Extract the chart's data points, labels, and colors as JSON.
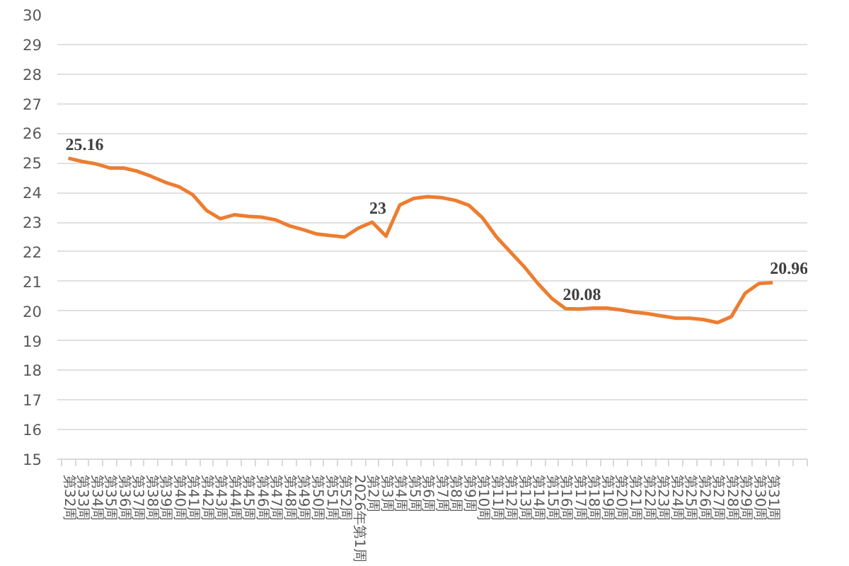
{
  "chart_data": {
    "type": "line",
    "categories": [
      "第32周",
      "第33周",
      "第34周",
      "第35周",
      "第36周",
      "第37周",
      "第38周",
      "第39周",
      "第40周",
      "第41周",
      "第42周",
      "第43周",
      "第44周",
      "第45周",
      "第46周",
      "第47周",
      "第48周",
      "第49周",
      "第50周",
      "第51周",
      "第52周",
      "2026年第1周",
      "第2周",
      "第3周",
      "第4周",
      "第5周",
      "第6周",
      "第7周",
      "第8周",
      "第9周",
      "第10周",
      "第11周",
      "第12周",
      "第13周",
      "第14周",
      "第15周",
      "第16周",
      "第17周",
      "第18周",
      "第19周",
      "第20周",
      "第21周",
      "第22周",
      "第23周",
      "第24周",
      "第25周",
      "第26周",
      "第27周",
      "第28周",
      "第29周",
      "第30周",
      "第31周",
      null,
      null
    ],
    "series": [
      {
        "color": "#ed7d31",
        "values": [
          25.16,
          25.05,
          24.97,
          24.83,
          24.83,
          24.72,
          24.55,
          24.35,
          24.2,
          23.93,
          23.4,
          23.12,
          23.25,
          23.2,
          23.17,
          23.08,
          22.88,
          22.75,
          22.6,
          22.55,
          22.5,
          22.8,
          23,
          22.53,
          23.58,
          23.8,
          23.86,
          23.83,
          23.74,
          23.57,
          23.14,
          22.5,
          22.0,
          21.5,
          20.93,
          20.43,
          20.08,
          20.07,
          20.1,
          20.1,
          20.04,
          19.96,
          19.91,
          19.83,
          19.76,
          19.76,
          19.71,
          19.61,
          19.81,
          20.6,
          20.93,
          20.96,
          null,
          null
        ],
        "value_labels": [
          "25.16",
          null,
          null,
          null,
          null,
          null,
          null,
          null,
          null,
          null,
          null,
          null,
          null,
          null,
          null,
          null,
          null,
          null,
          null,
          null,
          null,
          null,
          "23",
          null,
          null,
          null,
          null,
          null,
          null,
          null,
          null,
          null,
          null,
          null,
          null,
          null,
          "20.08",
          null,
          null,
          null,
          null,
          null,
          null,
          null,
          null,
          null,
          null,
          null,
          null,
          null,
          null,
          "20.96",
          null,
          null
        ]
      }
    ],
    "ylim": [
      15,
      30
    ],
    "yticks": [
      15,
      16,
      17,
      18,
      19,
      20,
      21,
      22,
      23,
      24,
      25,
      26,
      27,
      28,
      29,
      30
    ],
    "grid": "y",
    "marker": "none",
    "line_style": "solid"
  }
}
